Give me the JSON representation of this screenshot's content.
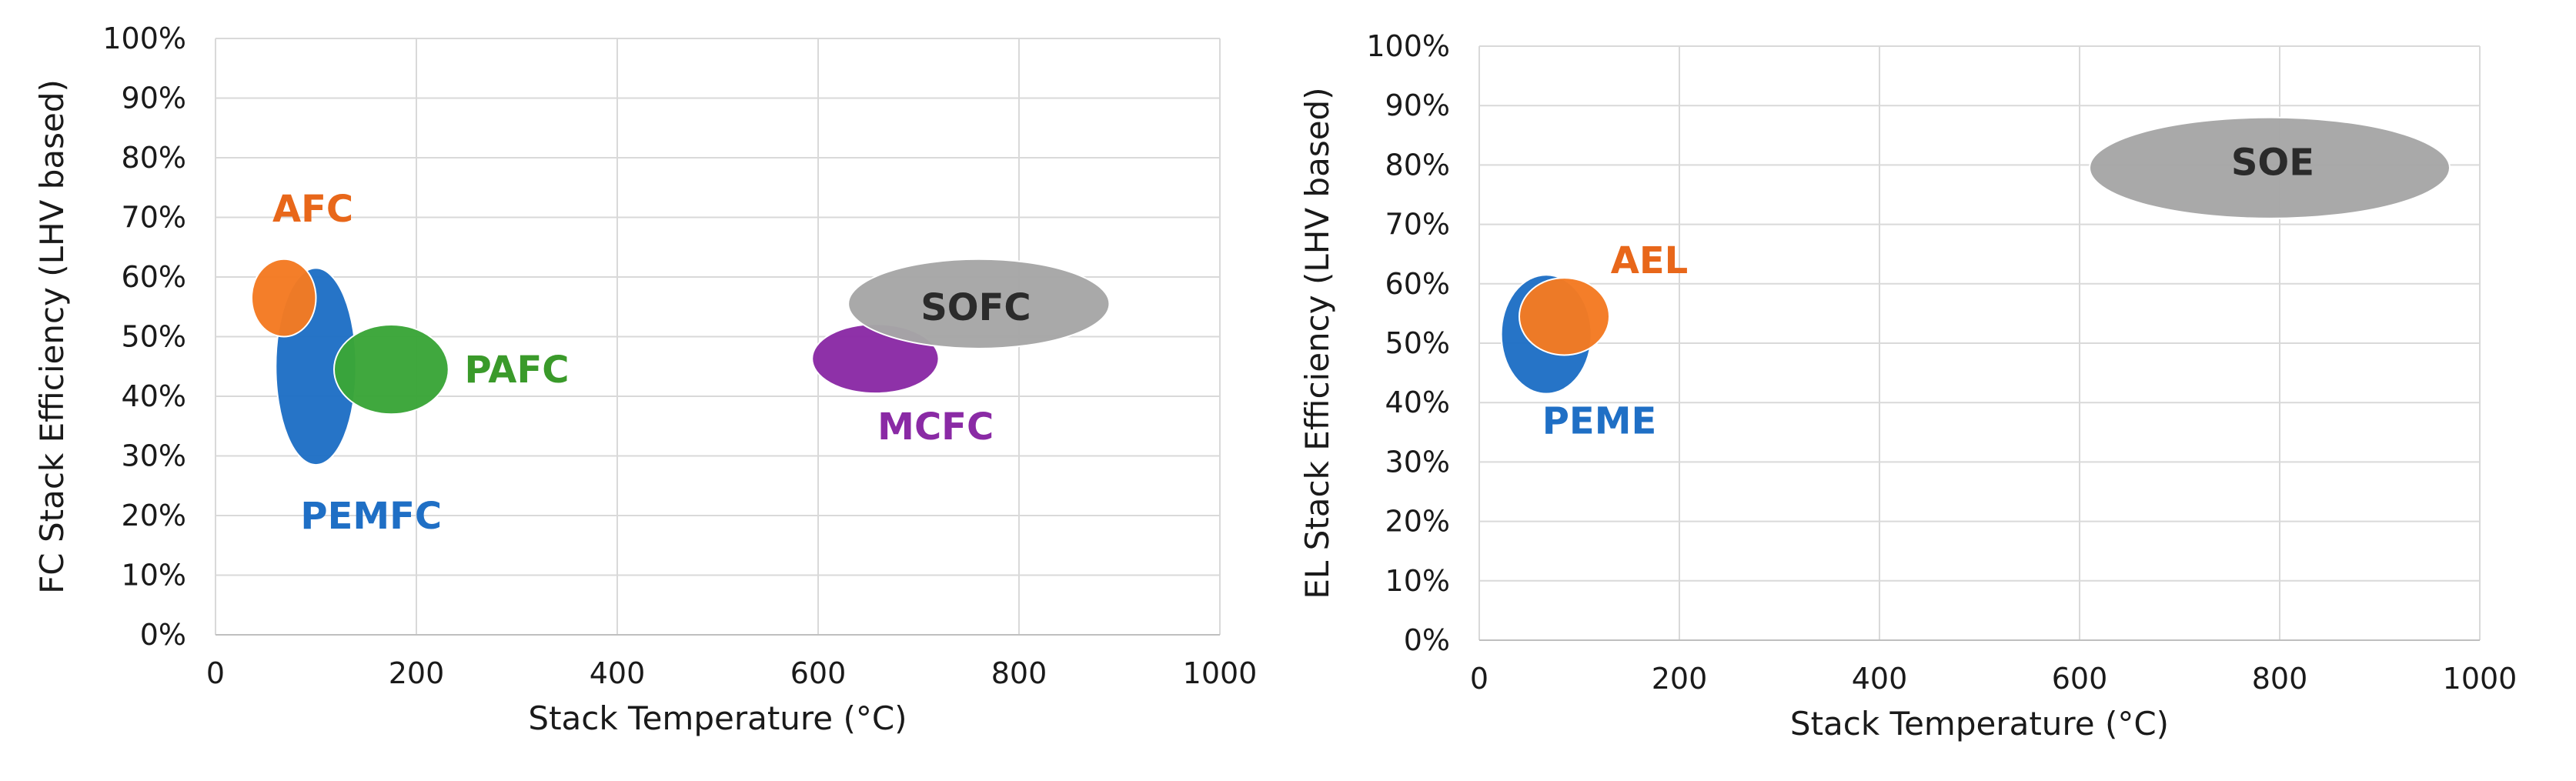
{
  "chart_data": [
    {
      "type": "bubble",
      "xlabel": "Stack Temperature (°C)",
      "ylabel": "FC Stack Efficiency (LHV based)",
      "xlim": [
        0,
        1000
      ],
      "ylim": [
        0,
        100
      ],
      "xticks": [
        0,
        200,
        400,
        600,
        800,
        1000
      ],
      "yticks": [
        0,
        10,
        20,
        30,
        40,
        50,
        60,
        70,
        80,
        90,
        100
      ],
      "ytick_labels": [
        "0%",
        "10%",
        "20%",
        "30%",
        "40%",
        "50%",
        "60%",
        "70%",
        "80%",
        "90%",
        "100%"
      ],
      "grid": true,
      "regions": [
        {
          "name": "PEMFC",
          "x_center": 100,
          "y_center": 45,
          "x_radius": 40,
          "y_radius": 16.5,
          "color": "#1f6fc5",
          "label_x": 155,
          "label_y": 20,
          "label_color": "#1f6fc5"
        },
        {
          "name": "AFC",
          "x_center": 68,
          "y_center": 56.5,
          "x_radius": 32,
          "y_radius": 6.5,
          "color": "#f47a22",
          "label_x": 97,
          "label_y": 71.5,
          "label_color": "#e8671a"
        },
        {
          "name": "PAFC",
          "x_center": 175,
          "y_center": 44.5,
          "x_radius": 57,
          "y_radius": 7.5,
          "color": "#3aa538",
          "label_x": 300,
          "label_y": 44.5,
          "label_color": "#3a9a2a"
        },
        {
          "name": "MCFC",
          "x_center": 657,
          "y_center": 46.3,
          "x_radius": 63,
          "y_radius": 5.8,
          "color": "#8a2aa5",
          "label_x": 717,
          "label_y": 35,
          "label_color": "#8a2aa5"
        },
        {
          "name": "SOFC",
          "x_center": 760,
          "y_center": 55.5,
          "x_radius": 130,
          "y_radius": 7.5,
          "color": "#a6a6a6",
          "label_x": 757,
          "label_y": 55,
          "label_color": "#2b2b2b"
        }
      ]
    },
    {
      "type": "bubble",
      "xlabel": "Stack Temperature (°C)",
      "ylabel": "EL Stack Efficiency (LHV based)",
      "xlim": [
        0,
        1000
      ],
      "ylim": [
        0,
        100
      ],
      "xticks": [
        0,
        200,
        400,
        600,
        800,
        1000
      ],
      "yticks": [
        0,
        10,
        20,
        30,
        40,
        50,
        60,
        70,
        80,
        90,
        100
      ],
      "ytick_labels": [
        "0%",
        "10%",
        "20%",
        "30%",
        "40%",
        "50%",
        "60%",
        "70%",
        "80%",
        "90%",
        "100%"
      ],
      "grid": true,
      "regions": [
        {
          "name": "PEME",
          "x_center": 67,
          "y_center": 51.5,
          "x_radius": 45,
          "y_radius": 10,
          "color": "#1f6fc5",
          "label_x": 120,
          "label_y": 37,
          "label_color": "#1f6fc5"
        },
        {
          "name": "AEL",
          "x_center": 85,
          "y_center": 54.5,
          "x_radius": 45,
          "y_radius": 6.5,
          "color": "#f47a22",
          "label_x": 170,
          "label_y": 64,
          "label_color": "#e8671a"
        },
        {
          "name": "SOE",
          "x_center": 790,
          "y_center": 79.5,
          "x_radius": 180,
          "y_radius": 8.5,
          "color": "#a6a6a6",
          "label_x": 793,
          "label_y": 80.5,
          "label_color": "#2b2b2b"
        }
      ]
    }
  ]
}
